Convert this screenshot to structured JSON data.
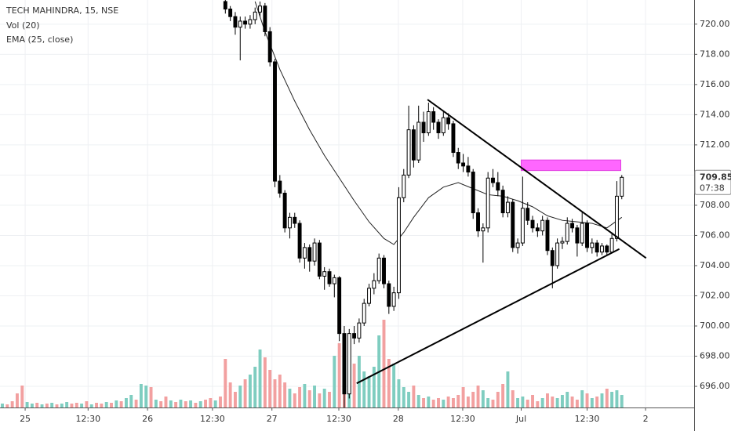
{
  "chart_data": {
    "type": "candlestick",
    "legend": [
      "TECH MAHINDRA, 15, NSE",
      "Vol (20)",
      "EMA (25, close)"
    ],
    "xlim": [
      -0.475,
      139.6
    ],
    "ylim": [
      694.6,
      721.6
    ],
    "xticks": [
      {
        "value": 4.6,
        "label": "25"
      },
      {
        "value": 17.3,
        "label": "12:30"
      },
      {
        "value": 29.3,
        "label": "26"
      },
      {
        "value": 42.4,
        "label": "12:30"
      },
      {
        "value": 54.4,
        "label": "27"
      },
      {
        "value": 67.9,
        "label": "12:30"
      },
      {
        "value": 79.9,
        "label": "28"
      },
      {
        "value": 92.9,
        "label": "12:30"
      },
      {
        "value": 104.7,
        "label": "Jul"
      },
      {
        "value": 118,
        "label": "12:30"
      },
      {
        "value": 129.8,
        "label": "2"
      }
    ],
    "yticks": [
      {
        "value": 696,
        "label": "696.00"
      },
      {
        "value": 698,
        "label": "698.00"
      },
      {
        "value": 700,
        "label": "700.00"
      },
      {
        "value": 702,
        "label": "702.00"
      },
      {
        "value": 704,
        "label": "704.00"
      },
      {
        "value": 706,
        "label": "706.00"
      },
      {
        "value": 708,
        "label": "708.00"
      },
      {
        "value": 710,
        "label": "710.00"
      },
      {
        "value": 712,
        "label": "712.00"
      },
      {
        "value": 714,
        "label": "714.00"
      },
      {
        "value": 716,
        "label": "716.00"
      },
      {
        "value": 718,
        "label": "718.00"
      },
      {
        "value": 720,
        "label": "720.00"
      }
    ],
    "grid": true,
    "last_price": 709.85,
    "countdown": "07:38",
    "candles": {
      "up_color": "#ffffff",
      "down_color": "#000000",
      "border_color": "#000000",
      "x": [
        45,
        46,
        47,
        48,
        49,
        50,
        51,
        52,
        53,
        54,
        55,
        56,
        57,
        58,
        59,
        60,
        61,
        62,
        63,
        64,
        65,
        66,
        67,
        68,
        69,
        70,
        71,
        72,
        73,
        74,
        75,
        76,
        77,
        78,
        79,
        80,
        81,
        82,
        83,
        84,
        85,
        86,
        87,
        88,
        89,
        90,
        91,
        92,
        93,
        94,
        95,
        96,
        97,
        98,
        99,
        100,
        101,
        102,
        103,
        104,
        105,
        106,
        107,
        108,
        109,
        110,
        111,
        112,
        113,
        114,
        115,
        116,
        117,
        118,
        119,
        120,
        121,
        122,
        123,
        124,
        125
      ],
      "open": [
        721.5,
        721,
        720.5,
        719.8,
        720.2,
        720,
        720.3,
        720.8,
        721.2,
        719.5,
        717.5,
        709.6,
        708.8,
        706.5,
        707.2,
        706.8,
        704.5,
        705.2,
        704.3,
        705.5,
        703.3,
        703.6,
        702.8,
        703.2,
        699.5,
        695.5,
        699.5,
        699.2,
        700.2,
        701.5,
        702.5,
        703,
        704.5,
        702.8,
        701.3,
        702.2,
        708.5,
        710,
        713,
        711,
        713.5,
        712.8,
        714.2,
        713.5,
        712.8,
        713.8,
        713.4,
        711.5,
        710.8,
        710.6,
        710.2,
        707.5,
        706.3,
        706.5,
        709.8,
        709.5,
        709,
        707.5,
        708.2,
        705.2,
        705.5,
        707.8,
        707,
        706.5,
        706.3,
        707,
        705,
        704,
        705.5,
        705.6,
        706.8,
        706.5,
        705.5,
        706.8,
        705.2,
        705.5,
        704.9,
        705.3,
        704.9,
        705.8,
        708.6
      ],
      "high": [
        721.8,
        721.2,
        720.8,
        720.5,
        720.5,
        720.6,
        721.1,
        721.5,
        721.4,
        719.8,
        717.7,
        710,
        709,
        707.5,
        707.5,
        707,
        705.5,
        705.4,
        705.8,
        705.7,
        703.9,
        703.8,
        703.4,
        703.3,
        700,
        699.8,
        700,
        700.5,
        701.8,
        702.8,
        703.5,
        704.8,
        704.7,
        703,
        702.6,
        709.2,
        710.4,
        714.6,
        713.3,
        714.6,
        714.2,
        714.8,
        714.5,
        713.7,
        714.2,
        714.1,
        713.6,
        711.8,
        711.4,
        711.2,
        710.4,
        707.8,
        706.8,
        710.2,
        710.4,
        710.2,
        709.3,
        708.6,
        708.4,
        705.8,
        709.9,
        708.2,
        707.3,
        706.8,
        707.3,
        707.2,
        705.2,
        705.8,
        705.9,
        707.2,
        707.1,
        706.7,
        707.6,
        707,
        705.8,
        705.7,
        705.5,
        705.4,
        706.2,
        709.6,
        710
      ],
      "low": [
        720.7,
        720.2,
        719.3,
        717.6,
        719.7,
        719.7,
        720,
        720.5,
        719.2,
        717.2,
        709.2,
        708.5,
        706.2,
        705.8,
        706.5,
        704.2,
        703.8,
        703.6,
        704,
        703.1,
        702.4,
        702.6,
        701.9,
        699,
        694.6,
        695.2,
        698.8,
        698.9,
        700,
        701.3,
        702.1,
        702.8,
        702.5,
        700.8,
        701,
        701.8,
        708.2,
        709.8,
        710.5,
        710.8,
        712.2,
        712.6,
        713,
        712.4,
        712.6,
        713,
        711.2,
        710.4,
        710.2,
        709.9,
        707.1,
        705.9,
        704.2,
        706.2,
        709.2,
        708.6,
        707.2,
        707.2,
        704.9,
        704.8,
        705.3,
        706.7,
        706.2,
        705.9,
        706,
        704.7,
        702.5,
        703.8,
        705.1,
        705.4,
        706.2,
        704.6,
        705.3,
        704.9,
        704.8,
        704.6,
        704.7,
        704.7,
        704.8,
        705.6,
        708.4
      ],
      "close": [
        721,
        720.5,
        719.8,
        720.2,
        720,
        720.3,
        720.8,
        721.2,
        719.5,
        717.5,
        709.6,
        708.8,
        706.5,
        707.2,
        706.8,
        704.5,
        705.2,
        704.3,
        705.5,
        703.3,
        703.6,
        702.8,
        703.2,
        699.5,
        695.5,
        699.5,
        699.2,
        700.2,
        701.5,
        702.5,
        703,
        704.5,
        702.8,
        701.3,
        702.2,
        708.5,
        710,
        713,
        711,
        713.5,
        712.8,
        714.2,
        713.5,
        712.8,
        713.8,
        713.4,
        711.5,
        710.8,
        710.6,
        710.2,
        707.5,
        706.3,
        706.5,
        709.8,
        709.5,
        709,
        707.5,
        708.2,
        705.2,
        705.5,
        707.8,
        707,
        706.5,
        706.3,
        707,
        705,
        704,
        705.5,
        705.6,
        706.8,
        706.5,
        705.5,
        706.8,
        705.2,
        705.5,
        704.9,
        705.3,
        704.9,
        705.8,
        708.6,
        709.85
      ]
    },
    "ema": {
      "name": "EMA (25, close)",
      "color": "#222222",
      "x": [
        51,
        53,
        56,
        59,
        62,
        65,
        68,
        71,
        74,
        77,
        79,
        81,
        83,
        86,
        89,
        92,
        95,
        98,
        101,
        104,
        107,
        110,
        113,
        116,
        119,
        122,
        125
      ],
      "values": [
        721.5,
        719.5,
        717,
        714.9,
        713,
        711.3,
        709.8,
        708.3,
        706.9,
        705.8,
        705.4,
        706.2,
        707.2,
        708.5,
        709.2,
        709.5,
        709.1,
        708.7,
        708.6,
        708.3,
        707.9,
        707.3,
        707,
        706.9,
        706.8,
        706.5,
        707.2
      ]
    },
    "volume": {
      "up_color": "#7fcdc0",
      "down_color": "#f2a0a0",
      "vlim": [
        0,
        120
      ],
      "values": [
        5,
        4,
        8,
        18,
        28,
        7,
        5,
        6,
        4,
        5,
        6,
        4,
        5,
        7,
        5,
        6,
        5,
        8,
        4,
        6,
        5,
        7,
        6,
        9,
        8,
        12,
        16,
        10,
        30,
        28,
        26,
        10,
        8,
        14,
        9,
        7,
        10,
        8,
        9,
        6,
        8,
        10,
        12,
        9,
        14,
        62,
        32,
        20,
        28,
        36,
        42,
        52,
        74,
        64,
        48,
        36,
        42,
        32,
        24,
        18,
        26,
        30,
        22,
        28,
        18,
        24,
        20,
        66,
        82,
        86,
        72,
        56,
        66,
        46,
        40,
        52,
        92,
        112,
        62,
        56,
        36,
        26,
        20,
        28,
        16,
        12,
        14,
        10,
        12,
        10,
        14,
        12,
        16,
        26,
        14,
        20,
        28,
        22,
        12,
        10,
        20,
        30,
        46,
        22,
        12,
        14,
        10,
        16,
        8,
        12,
        18,
        14,
        12,
        16,
        20,
        14,
        10,
        22,
        18,
        12,
        14,
        18,
        24,
        20,
        22,
        16
      ],
      "up": [
        1,
        0,
        0,
        0,
        0,
        1,
        1,
        0,
        1,
        0,
        1,
        0,
        1,
        1,
        0,
        0,
        1,
        0,
        1,
        0,
        0,
        1,
        0,
        1,
        0,
        1,
        1,
        0,
        1,
        1,
        0,
        1,
        0,
        0,
        1,
        0,
        1,
        0,
        1,
        0,
        1,
        0,
        0,
        1,
        0,
        0,
        0,
        0,
        1,
        0,
        1,
        1,
        1,
        0,
        0,
        0,
        0,
        0,
        1,
        0,
        0,
        1,
        0,
        1,
        0,
        1,
        0,
        1,
        0,
        0,
        1,
        0,
        1,
        1,
        1,
        1,
        1,
        0,
        0,
        1,
        1,
        1,
        1,
        0,
        1,
        0,
        1,
        0,
        0,
        1,
        0,
        0,
        0,
        0,
        0,
        0,
        0,
        1,
        1,
        0,
        0,
        0,
        1,
        0,
        1,
        1,
        0,
        0,
        0,
        1,
        0,
        0,
        1,
        1,
        1,
        0,
        0,
        1,
        0,
        1,
        0,
        1,
        0,
        1,
        1,
        1
      ]
    },
    "trendlines": [
      {
        "x": [
          71.5,
          124.5
        ],
        "y": [
          696.2,
          705.1
        ],
        "color": "#000000"
      },
      {
        "x": [
          85.8,
          129.9
        ],
        "y": [
          715,
          704.5
        ],
        "color": "#000000"
      }
    ],
    "rectangle": {
      "x": [
        104.7,
        124.8
      ],
      "y": [
        710.3,
        711
      ],
      "color": "#ff66ff"
    }
  }
}
